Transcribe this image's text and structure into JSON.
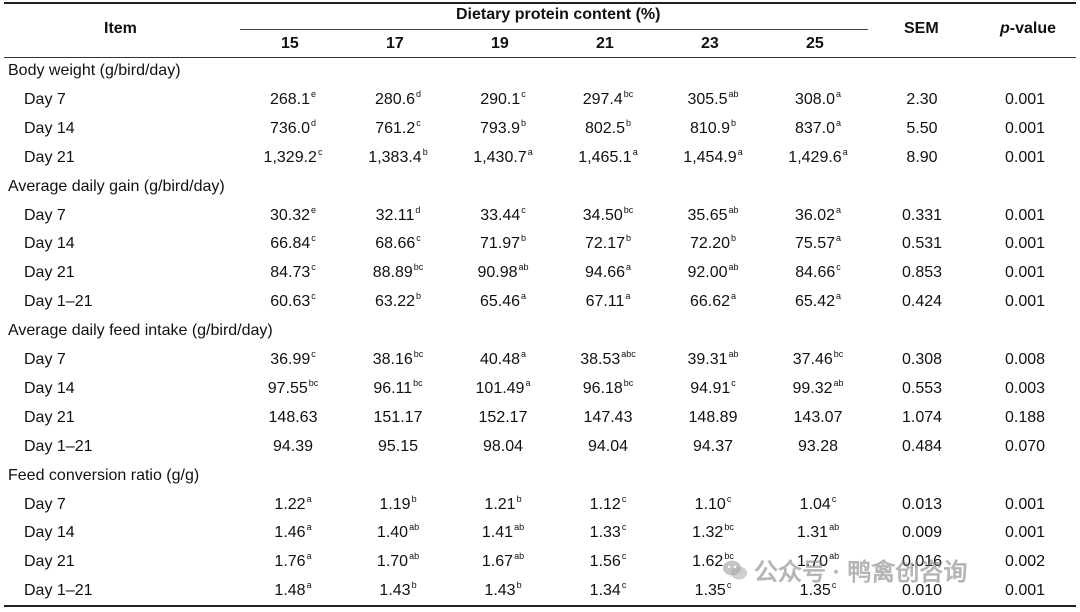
{
  "header": {
    "item": "Item",
    "group": "Dietary protein content (%)",
    "levels": [
      "15",
      "17",
      "19",
      "21",
      "23",
      "25"
    ],
    "sem": "SEM",
    "pvalue_italic": "p",
    "pvalue_rest": "-value"
  },
  "sections": [
    {
      "title": "Body weight (g/bird/day)",
      "rows": [
        {
          "label": "Day 7",
          "cells": [
            [
              "268.1",
              "e"
            ],
            [
              "280.6",
              "d"
            ],
            [
              "290.1",
              "c"
            ],
            [
              "297.4",
              "bc"
            ],
            [
              "305.5",
              "ab"
            ],
            [
              "308.0",
              "a"
            ]
          ],
          "sem": "2.30",
          "p": "0.001"
        },
        {
          "label": "Day 14",
          "cells": [
            [
              "736.0",
              "d"
            ],
            [
              "761.2",
              "c"
            ],
            [
              "793.9",
              "b"
            ],
            [
              "802.5",
              "b"
            ],
            [
              "810.9",
              "b"
            ],
            [
              "837.0",
              "a"
            ]
          ],
          "sem": "5.50",
          "p": "0.001"
        },
        {
          "label": "Day 21",
          "cells": [
            [
              "1,329.2",
              "c"
            ],
            [
              "1,383.4",
              "b"
            ],
            [
              "1,430.7",
              "a"
            ],
            [
              "1,465.1",
              "a"
            ],
            [
              "1,454.9",
              "a"
            ],
            [
              "1,429.6",
              "a"
            ]
          ],
          "sem": "8.90",
          "p": "0.001"
        }
      ]
    },
    {
      "title": "Average daily gain (g/bird/day)",
      "rows": [
        {
          "label": "Day 7",
          "cells": [
            [
              "30.32",
              "e"
            ],
            [
              "32.11",
              "d"
            ],
            [
              "33.44",
              "c"
            ],
            [
              "34.50",
              "bc"
            ],
            [
              "35.65",
              "ab"
            ],
            [
              "36.02",
              "a"
            ]
          ],
          "sem": "0.331",
          "p": "0.001"
        },
        {
          "label": "Day 14",
          "cells": [
            [
              "66.84",
              "c"
            ],
            [
              "68.66",
              "c"
            ],
            [
              "71.97",
              "b"
            ],
            [
              "72.17",
              "b"
            ],
            [
              "72.20",
              "b"
            ],
            [
              "75.57",
              "a"
            ]
          ],
          "sem": "0.531",
          "p": "0.001"
        },
        {
          "label": "Day 21",
          "cells": [
            [
              "84.73",
              "c"
            ],
            [
              "88.89",
              "bc"
            ],
            [
              "90.98",
              "ab"
            ],
            [
              "94.66",
              "a"
            ],
            [
              "92.00",
              "ab"
            ],
            [
              "84.66",
              "c"
            ]
          ],
          "sem": "0.853",
          "p": "0.001"
        },
        {
          "label": "Day 1–21",
          "cells": [
            [
              "60.63",
              "c"
            ],
            [
              "63.22",
              "b"
            ],
            [
              "65.46",
              "a"
            ],
            [
              "67.11",
              "a"
            ],
            [
              "66.62",
              "a"
            ],
            [
              "65.42",
              "a"
            ]
          ],
          "sem": "0.424",
          "p": "0.001"
        }
      ]
    },
    {
      "title": "Average daily feed intake (g/bird/day)",
      "rows": [
        {
          "label": "Day 7",
          "cells": [
            [
              "36.99",
              "c"
            ],
            [
              "38.16",
              "bc"
            ],
            [
              "40.48",
              "a"
            ],
            [
              "38.53",
              "abc"
            ],
            [
              "39.31",
              "ab"
            ],
            [
              "37.46",
              "bc"
            ]
          ],
          "sem": "0.308",
          "p": "0.008"
        },
        {
          "label": "Day 14",
          "cells": [
            [
              "97.55",
              "bc"
            ],
            [
              "96.11",
              "bc"
            ],
            [
              "101.49",
              "a"
            ],
            [
              "96.18",
              "bc"
            ],
            [
              "94.91",
              "c"
            ],
            [
              "99.32",
              "ab"
            ]
          ],
          "sem": "0.553",
          "p": "0.003"
        },
        {
          "label": "Day 21",
          "cells": [
            [
              "148.63",
              ""
            ],
            [
              "151.17",
              ""
            ],
            [
              "152.17",
              ""
            ],
            [
              "147.43",
              ""
            ],
            [
              "148.89",
              ""
            ],
            [
              "143.07",
              ""
            ]
          ],
          "sem": "1.074",
          "p": "0.188"
        },
        {
          "label": "Day 1–21",
          "cells": [
            [
              "94.39",
              ""
            ],
            [
              "95.15",
              ""
            ],
            [
              "98.04",
              ""
            ],
            [
              "94.04",
              ""
            ],
            [
              "94.37",
              ""
            ],
            [
              "93.28",
              ""
            ]
          ],
          "sem": "0.484",
          "p": "0.070"
        }
      ]
    },
    {
      "title": "Feed conversion ratio (g/g)",
      "rows": [
        {
          "label": "Day 7",
          "cells": [
            [
              "1.22",
              "a"
            ],
            [
              "1.19",
              "b"
            ],
            [
              "1.21",
              "b"
            ],
            [
              "1.12",
              "c"
            ],
            [
              "1.10",
              "c"
            ],
            [
              "1.04",
              "c"
            ]
          ],
          "sem": "0.013",
          "p": "0.001"
        },
        {
          "label": "Day 14",
          "cells": [
            [
              "1.46",
              "a"
            ],
            [
              "1.40",
              "ab"
            ],
            [
              "1.41",
              "ab"
            ],
            [
              "1.33",
              "c"
            ],
            [
              "1.32",
              "bc"
            ],
            [
              "1.31",
              "ab"
            ]
          ],
          "sem": "0.009",
          "p": "0.001"
        },
        {
          "label": "Day 21",
          "cells": [
            [
              "1.76",
              "a"
            ],
            [
              "1.70",
              "ab"
            ],
            [
              "1.67",
              "ab"
            ],
            [
              "1.56",
              "c"
            ],
            [
              "1.62",
              "bc"
            ],
            [
              "1.70",
              "ab"
            ]
          ],
          "sem": "0.016",
          "p": "0.002"
        },
        {
          "label": "Day 1–21",
          "cells": [
            [
              "1.48",
              "a"
            ],
            [
              "1.43",
              "b"
            ],
            [
              "1.43",
              "b"
            ],
            [
              "1.34",
              "c"
            ],
            [
              "1.35",
              "c"
            ],
            [
              "1.35",
              "c"
            ]
          ],
          "sem": "0.010",
          "p": "0.001"
        }
      ]
    }
  ],
  "watermark": {
    "text": "公众号 · 鸭禽创咨询",
    "icon": "wechat-icon"
  }
}
